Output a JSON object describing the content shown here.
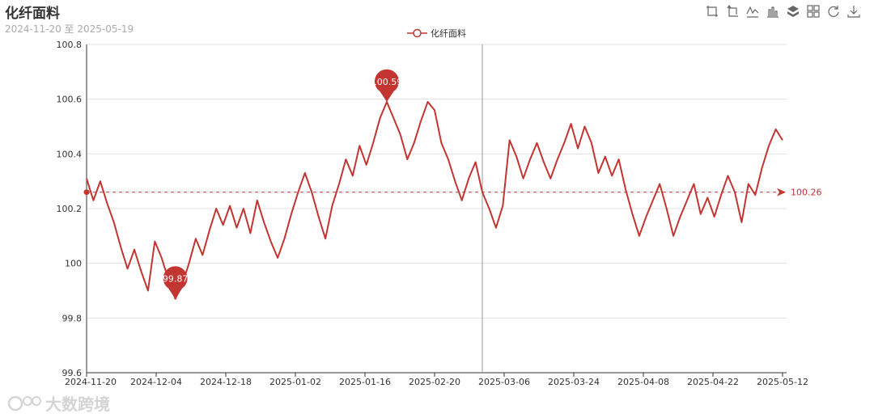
{
  "header": {
    "title": "化纤面料",
    "subtitle": "2024-11-20 至 2025-05-19"
  },
  "toolbox": {
    "icons": [
      "zoom-icon",
      "zoom-reset-icon",
      "line-chart-icon",
      "bar-chart-icon",
      "stack-icon",
      "tiled-icon",
      "refresh-icon",
      "download-icon"
    ]
  },
  "legend": {
    "label": "化纤面料",
    "color": "#c23531"
  },
  "watermark": {
    "text": "大数跨境"
  },
  "colors": {
    "series": "#c23531",
    "grid": "#e0e0e0",
    "axis": "#333333",
    "marker_pin": "#c23531"
  },
  "chart_data": {
    "type": "line",
    "series": [
      {
        "name": "化纤面料",
        "values": [
          100.31,
          100.23,
          100.3,
          100.22,
          100.15,
          100.06,
          99.98,
          100.05,
          99.97,
          99.9,
          100.08,
          100.02,
          99.94,
          99.87,
          99.92,
          100.0,
          100.09,
          100.03,
          100.12,
          100.2,
          100.14,
          100.21,
          100.13,
          100.2,
          100.11,
          100.23,
          100.15,
          100.08,
          100.02,
          100.09,
          100.18,
          100.26,
          100.33,
          100.26,
          100.17,
          100.09,
          100.21,
          100.29,
          100.38,
          100.32,
          100.43,
          100.36,
          100.44,
          100.53,
          100.59,
          100.53,
          100.47,
          100.38,
          100.44,
          100.52,
          100.59,
          100.56,
          100.44,
          100.38,
          100.3,
          100.23,
          100.31,
          100.37,
          100.26,
          100.2,
          100.13,
          100.21,
          100.45,
          100.39,
          100.31,
          100.38,
          100.44,
          100.37,
          100.31,
          100.38,
          100.44,
          100.51,
          100.42,
          100.5,
          100.44,
          100.33,
          100.39,
          100.32,
          100.38,
          100.27,
          100.18,
          100.1,
          100.17,
          100.23,
          100.29,
          100.2,
          100.1,
          100.17,
          100.23,
          100.29,
          100.18,
          100.24,
          100.17,
          100.25,
          100.32,
          100.26,
          100.15,
          100.29,
          100.25,
          100.35,
          100.43,
          100.49,
          100.45
        ]
      }
    ],
    "x_ticks": [
      "2024-11-20",
      "2024-12-04",
      "2024-12-18",
      "2025-01-02",
      "2025-01-16",
      "2025-02-20",
      "2025-03-06",
      "2025-03-24",
      "2025-04-08",
      "2025-04-22",
      "2025-05-12"
    ],
    "y_ticks": [
      "99.6",
      "99.8",
      "100",
      "100.2",
      "100.4",
      "100.6",
      "100.8"
    ],
    "ylim": [
      99.6,
      100.8
    ],
    "grid": true,
    "legend_position": "top-center",
    "mark_points": [
      {
        "type": "max",
        "label": "100.59",
        "index": 44
      },
      {
        "type": "min",
        "label": "99.87",
        "index": 13
      }
    ],
    "mark_line": {
      "type": "average",
      "label": "100.26",
      "value": 100.26
    },
    "tooltip_axis_index": 58
  }
}
